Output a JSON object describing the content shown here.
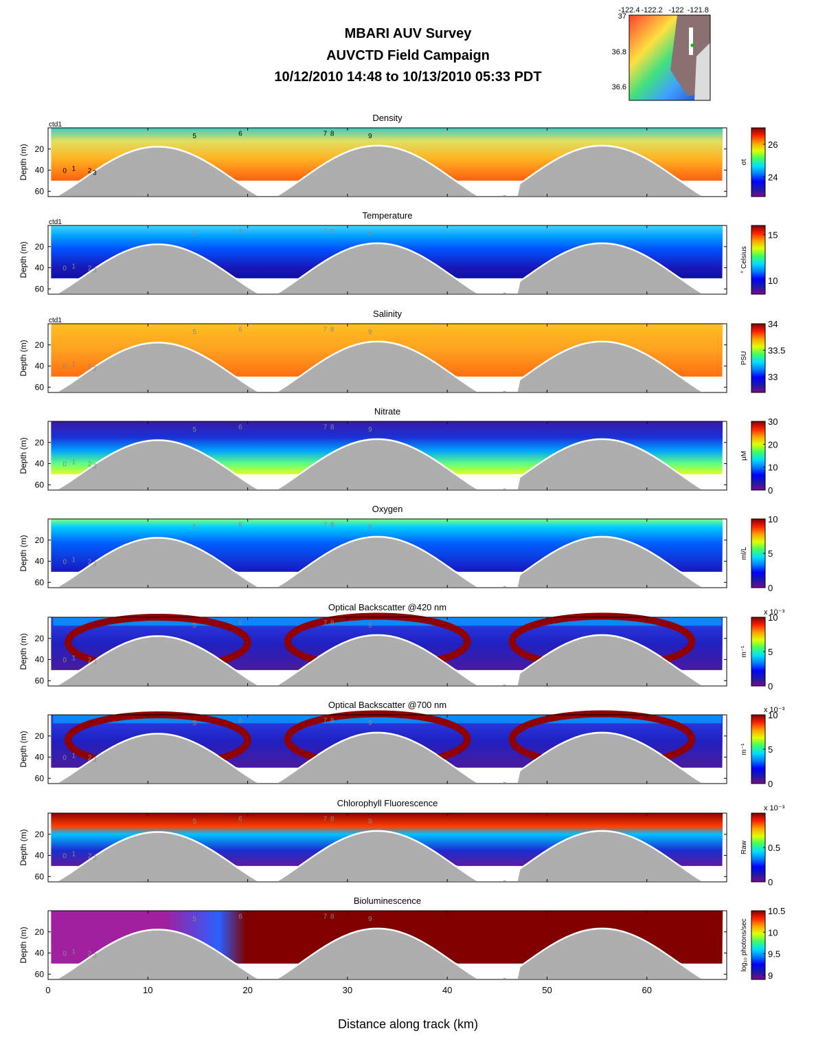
{
  "header": {
    "title": "MBARI AUV Survey",
    "subtitle": "AUVCTD Field Campaign",
    "date_range": "10/12/2010 14:48  to 10/13/2010 05:33 PDT"
  },
  "map_inset": {
    "lon_ticks": [
      "-122.4",
      "-122.2",
      "-122",
      "-121.8"
    ],
    "lat_ticks": [
      "37",
      "36.8",
      "36.6"
    ]
  },
  "x_axis": {
    "label": "Distance along track (km)",
    "ticks": [
      0,
      10,
      20,
      30,
      40,
      50,
      60
    ],
    "range": [
      0,
      68
    ]
  },
  "y_axis": {
    "label": "Depth (m)",
    "ticks": [
      20,
      40,
      60
    ],
    "range": [
      0,
      65
    ]
  },
  "profile_labels": [
    "ctd1",
    "0",
    "1",
    "2",
    "3",
    "5",
    "6",
    "7",
    "8",
    "9"
  ],
  "colors": {
    "bathymetry": "#aeaeae",
    "no_data": "#ffffff",
    "background": "#ffffff",
    "surface_gray": "#cfcfcf"
  },
  "chart_data": [
    {
      "type": "heatmap",
      "title": "Density",
      "colorbar_label": "σt",
      "colorbar_ticks": [
        "26",
        "24"
      ],
      "clim": [
        22.8,
        27.0
      ],
      "fill": "density"
    },
    {
      "type": "heatmap",
      "title": "Temperature",
      "colorbar_label": "° Celsius",
      "colorbar_ticks": [
        "15",
        "10"
      ],
      "clim": [
        8.5,
        16
      ],
      "fill": "temperature"
    },
    {
      "type": "heatmap",
      "title": "Salinity",
      "colorbar_label": "PSU",
      "colorbar_ticks": [
        "34",
        "33.5",
        "33"
      ],
      "clim": [
        32.7,
        34
      ],
      "fill": "salinity"
    },
    {
      "type": "heatmap",
      "title": "Nitrate",
      "colorbar_label": "µM",
      "colorbar_ticks": [
        "30",
        "20",
        "10",
        "0"
      ],
      "clim": [
        0,
        30
      ],
      "fill": "nitrate"
    },
    {
      "type": "heatmap",
      "title": "Oxygen",
      "colorbar_label": "ml/L",
      "colorbar_ticks": [
        "10",
        "5",
        "0"
      ],
      "clim": [
        0,
        10
      ],
      "fill": "oxygen"
    },
    {
      "type": "heatmap",
      "title": "Optical Backscatter @420 nm",
      "colorbar_label": "m⁻¹",
      "colorbar_exponent": "x 10⁻³",
      "colorbar_ticks": [
        "10",
        "5",
        "0"
      ],
      "clim": [
        0,
        10
      ],
      "fill": "patchy"
    },
    {
      "type": "heatmap",
      "title": "Optical Backscatter @700 nm",
      "colorbar_label": "m⁻¹",
      "colorbar_exponent": "x 10⁻³",
      "colorbar_ticks": [
        "10",
        "5",
        "0"
      ],
      "clim": [
        0,
        10
      ],
      "fill": "patchy"
    },
    {
      "type": "heatmap",
      "title": "Chlorophyll Fluorescence",
      "colorbar_label": "Raw",
      "colorbar_exponent": "x 10⁻³",
      "colorbar_ticks": [
        "0.5",
        "0"
      ],
      "clim": [
        0,
        1
      ],
      "fill": "chlorophyll"
    },
    {
      "type": "heatmap",
      "title": "Bioluminescence",
      "colorbar_label": "log₁₀ photons/sec",
      "colorbar_ticks": [
        "10.5",
        "10",
        "9.5",
        "9"
      ],
      "clim": [
        8.9,
        10.5
      ],
      "fill": "biolum"
    }
  ],
  "bathymetry_hills": [
    {
      "center_km": 11,
      "top_depth_m": 18
    },
    {
      "center_km": 33,
      "top_depth_m": 17
    },
    {
      "center_km": 55.5,
      "top_depth_m": 17
    }
  ]
}
